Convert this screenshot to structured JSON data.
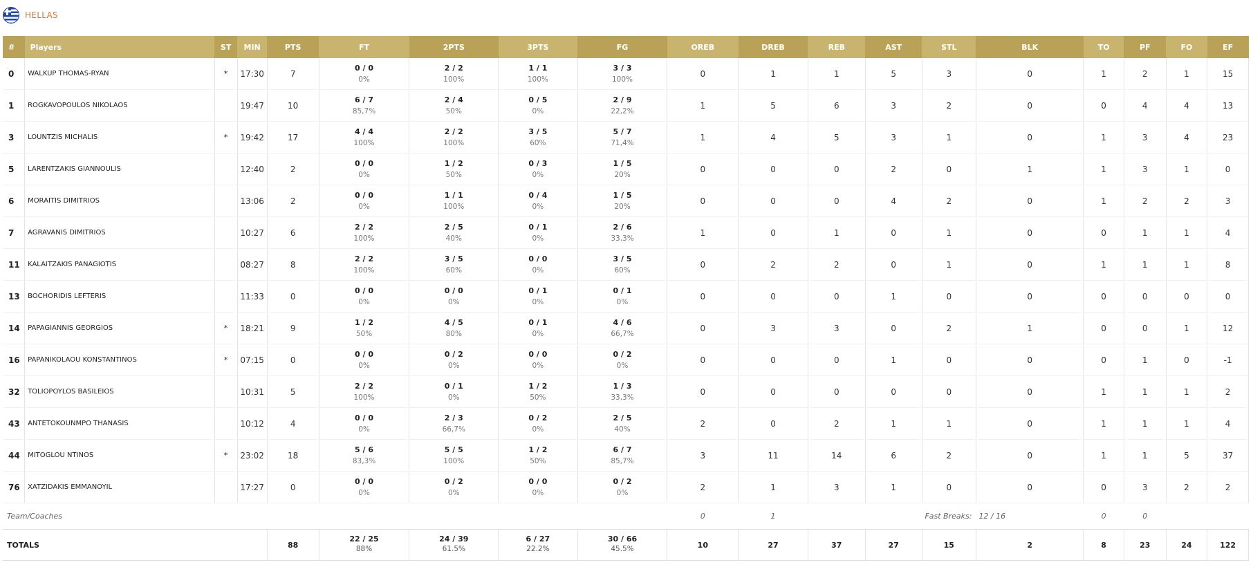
{
  "team": {
    "name": "HELLAS",
    "flag_icon": "greece-flag-icon"
  },
  "colors": {
    "header_dark": "#b9a258",
    "header_light": "#c8b46e",
    "team_name": "#d07a2a"
  },
  "columns": [
    "#",
    "Players",
    "ST",
    "MIN",
    "PTS",
    "FT",
    "2PTS",
    "3PTS",
    "FG",
    "OREB",
    "DREB",
    "REB",
    "AST",
    "STL",
    "BLK",
    "TO",
    "PF",
    "FO",
    "EF"
  ],
  "players": [
    {
      "num": "0",
      "name": "WALKUP THOMAS-RYAN",
      "st": "*",
      "min": "17:30",
      "pts": "7",
      "ft": "0 / 0",
      "ft_pct": "0%",
      "p2": "2 / 2",
      "p2_pct": "100%",
      "p3": "1 / 1",
      "p3_pct": "100%",
      "fg": "3 / 3",
      "fg_pct": "100%",
      "oreb": "0",
      "dreb": "1",
      "reb": "1",
      "ast": "5",
      "stl": "3",
      "blk": "0",
      "to": "1",
      "pf": "2",
      "fo": "1",
      "ef": "15"
    },
    {
      "num": "1",
      "name": "ROGKAVOPOULOS NIKOLAOS",
      "st": "",
      "min": "19:47",
      "pts": "10",
      "ft": "6 / 7",
      "ft_pct": "85,7%",
      "p2": "2 / 4",
      "p2_pct": "50%",
      "p3": "0 / 5",
      "p3_pct": "0%",
      "fg": "2 / 9",
      "fg_pct": "22,2%",
      "oreb": "1",
      "dreb": "5",
      "reb": "6",
      "ast": "3",
      "stl": "2",
      "blk": "0",
      "to": "0",
      "pf": "4",
      "fo": "4",
      "ef": "13"
    },
    {
      "num": "3",
      "name": "LOUNTZIS MICHALIS",
      "st": "*",
      "min": "19:42",
      "pts": "17",
      "ft": "4 / 4",
      "ft_pct": "100%",
      "p2": "2 / 2",
      "p2_pct": "100%",
      "p3": "3 / 5",
      "p3_pct": "60%",
      "fg": "5 / 7",
      "fg_pct": "71,4%",
      "oreb": "1",
      "dreb": "4",
      "reb": "5",
      "ast": "3",
      "stl": "1",
      "blk": "0",
      "to": "1",
      "pf": "3",
      "fo": "4",
      "ef": "23"
    },
    {
      "num": "5",
      "name": "LARENTZAKIS GIANNOULIS",
      "st": "",
      "min": "12:40",
      "pts": "2",
      "ft": "0 / 0",
      "ft_pct": "0%",
      "p2": "1 / 2",
      "p2_pct": "50%",
      "p3": "0 / 3",
      "p3_pct": "0%",
      "fg": "1 / 5",
      "fg_pct": "20%",
      "oreb": "0",
      "dreb": "0",
      "reb": "0",
      "ast": "2",
      "stl": "0",
      "blk": "1",
      "to": "1",
      "pf": "3",
      "fo": "1",
      "ef": "0"
    },
    {
      "num": "6",
      "name": "MORAITIS DIMITRIOS",
      "st": "",
      "min": "13:06",
      "pts": "2",
      "ft": "0 / 0",
      "ft_pct": "0%",
      "p2": "1 / 1",
      "p2_pct": "100%",
      "p3": "0 / 4",
      "p3_pct": "0%",
      "fg": "1 / 5",
      "fg_pct": "20%",
      "oreb": "0",
      "dreb": "0",
      "reb": "0",
      "ast": "4",
      "stl": "2",
      "blk": "0",
      "to": "1",
      "pf": "2",
      "fo": "2",
      "ef": "3"
    },
    {
      "num": "7",
      "name": "AGRAVANIS DIMITRIOS",
      "st": "",
      "min": "10:27",
      "pts": "6",
      "ft": "2 / 2",
      "ft_pct": "100%",
      "p2": "2 / 5",
      "p2_pct": "40%",
      "p3": "0 / 1",
      "p3_pct": "0%",
      "fg": "2 / 6",
      "fg_pct": "33,3%",
      "oreb": "1",
      "dreb": "0",
      "reb": "1",
      "ast": "0",
      "stl": "1",
      "blk": "0",
      "to": "0",
      "pf": "1",
      "fo": "1",
      "ef": "4"
    },
    {
      "num": "11",
      "name": "KALAITZAKIS PANAGIOTIS",
      "st": "",
      "min": "08:27",
      "pts": "8",
      "ft": "2 / 2",
      "ft_pct": "100%",
      "p2": "3 / 5",
      "p2_pct": "60%",
      "p3": "0 / 0",
      "p3_pct": "0%",
      "fg": "3 / 5",
      "fg_pct": "60%",
      "oreb": "0",
      "dreb": "2",
      "reb": "2",
      "ast": "0",
      "stl": "1",
      "blk": "0",
      "to": "1",
      "pf": "1",
      "fo": "1",
      "ef": "8"
    },
    {
      "num": "13",
      "name": "BOCHORIDIS LEFTERIS",
      "st": "",
      "min": "11:33",
      "pts": "0",
      "ft": "0 / 0",
      "ft_pct": "0%",
      "p2": "0 / 0",
      "p2_pct": "0%",
      "p3": "0 / 1",
      "p3_pct": "0%",
      "fg": "0 / 1",
      "fg_pct": "0%",
      "oreb": "0",
      "dreb": "0",
      "reb": "0",
      "ast": "1",
      "stl": "0",
      "blk": "0",
      "to": "0",
      "pf": "0",
      "fo": "0",
      "ef": "0"
    },
    {
      "num": "14",
      "name": "PAPAGIANNIS GEORGIOS",
      "st": "*",
      "min": "18:21",
      "pts": "9",
      "ft": "1 / 2",
      "ft_pct": "50%",
      "p2": "4 / 5",
      "p2_pct": "80%",
      "p3": "0 / 1",
      "p3_pct": "0%",
      "fg": "4 / 6",
      "fg_pct": "66,7%",
      "oreb": "0",
      "dreb": "3",
      "reb": "3",
      "ast": "0",
      "stl": "2",
      "blk": "1",
      "to": "0",
      "pf": "0",
      "fo": "1",
      "ef": "12"
    },
    {
      "num": "16",
      "name": "PAPANIKOLAOU KONSTANTINOS",
      "st": "*",
      "min": "07:15",
      "pts": "0",
      "ft": "0 / 0",
      "ft_pct": "0%",
      "p2": "0 / 2",
      "p2_pct": "0%",
      "p3": "0 / 0",
      "p3_pct": "0%",
      "fg": "0 / 2",
      "fg_pct": "0%",
      "oreb": "0",
      "dreb": "0",
      "reb": "0",
      "ast": "1",
      "stl": "0",
      "blk": "0",
      "to": "0",
      "pf": "1",
      "fo": "0",
      "ef": "-1"
    },
    {
      "num": "32",
      "name": "TOLIOPOYLOS BASILEIOS",
      "st": "",
      "min": "10:31",
      "pts": "5",
      "ft": "2 / 2",
      "ft_pct": "100%",
      "p2": "0 / 1",
      "p2_pct": "0%",
      "p3": "1 / 2",
      "p3_pct": "50%",
      "fg": "1 / 3",
      "fg_pct": "33,3%",
      "oreb": "0",
      "dreb": "0",
      "reb": "0",
      "ast": "0",
      "stl": "0",
      "blk": "0",
      "to": "1",
      "pf": "1",
      "fo": "1",
      "ef": "2"
    },
    {
      "num": "43",
      "name": "ANTETOKOUNMPO THANASIS",
      "st": "",
      "min": "10:12",
      "pts": "4",
      "ft": "0 / 0",
      "ft_pct": "0%",
      "p2": "2 / 3",
      "p2_pct": "66,7%",
      "p3": "0 / 2",
      "p3_pct": "0%",
      "fg": "2 / 5",
      "fg_pct": "40%",
      "oreb": "2",
      "dreb": "0",
      "reb": "2",
      "ast": "1",
      "stl": "1",
      "blk": "0",
      "to": "1",
      "pf": "1",
      "fo": "1",
      "ef": "4"
    },
    {
      "num": "44",
      "name": "MITOGLOU NTINOS",
      "st": "*",
      "min": "23:02",
      "pts": "18",
      "ft": "5 / 6",
      "ft_pct": "83,3%",
      "p2": "5 / 5",
      "p2_pct": "100%",
      "p3": "1 / 2",
      "p3_pct": "50%",
      "fg": "6 / 7",
      "fg_pct": "85,7%",
      "oreb": "3",
      "dreb": "11",
      "reb": "14",
      "ast": "6",
      "stl": "2",
      "blk": "0",
      "to": "1",
      "pf": "1",
      "fo": "5",
      "ef": "37"
    },
    {
      "num": "76",
      "name": "XATZIDAKIS EMMANOYIL",
      "st": "",
      "min": "17:27",
      "pts": "0",
      "ft": "0 / 0",
      "ft_pct": "0%",
      "p2": "0 / 2",
      "p2_pct": "0%",
      "p3": "0 / 0",
      "p3_pct": "0%",
      "fg": "0 / 2",
      "fg_pct": "0%",
      "oreb": "2",
      "dreb": "1",
      "reb": "3",
      "ast": "1",
      "stl": "0",
      "blk": "0",
      "to": "0",
      "pf": "3",
      "fo": "2",
      "ef": "2"
    }
  ],
  "team_row": {
    "label": "Team/Coaches",
    "oreb": "0",
    "dreb": "1",
    "fast_breaks_label": "Fast Breaks:",
    "fast_breaks_value": "12 / 16",
    "to": "0",
    "pf": "0"
  },
  "totals": {
    "label": "TOTALS",
    "pts": "88",
    "ft": "22 / 25",
    "ft_pct": "88%",
    "p2": "24 / 39",
    "p2_pct": "61.5%",
    "p3": "6 / 27",
    "p3_pct": "22.2%",
    "fg": "30 / 66",
    "fg_pct": "45.5%",
    "oreb": "10",
    "dreb": "27",
    "reb": "37",
    "ast": "27",
    "stl": "15",
    "blk": "2",
    "to": "8",
    "pf": "23",
    "fo": "24",
    "ef": "122"
  }
}
